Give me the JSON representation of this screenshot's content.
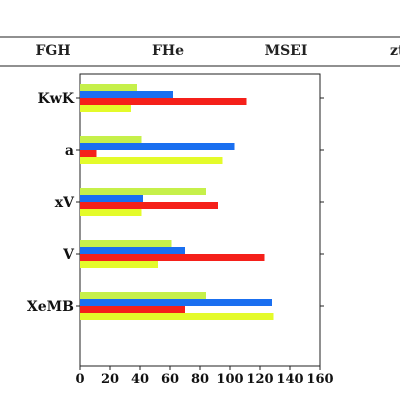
{
  "header": {
    "columns": [
      "FGH",
      "FHe",
      "MSEI",
      "zt"
    ]
  },
  "colors": {
    "series": [
      "#c6f04a",
      "#1a6ff0",
      "#f5201a",
      "#e4fb2a"
    ]
  },
  "chart_data": {
    "type": "bar",
    "orientation": "horizontal",
    "categories": [
      "KwK",
      "a",
      "xV",
      "V",
      "XeMB"
    ],
    "series": [
      {
        "values": [
          38,
          41,
          84,
          61,
          84
        ]
      },
      {
        "values": [
          62,
          103,
          42,
          70,
          128
        ]
      },
      {
        "values": [
          111,
          11,
          92,
          123,
          70
        ]
      },
      {
        "values": [
          34,
          95,
          41,
          52,
          129
        ]
      }
    ],
    "xlim": [
      0,
      160
    ],
    "xticks": [
      0,
      20,
      40,
      60,
      80,
      100,
      120,
      140,
      160
    ],
    "title": "",
    "xlabel": "",
    "ylabel": "",
    "grid": false,
    "legend": "none"
  }
}
